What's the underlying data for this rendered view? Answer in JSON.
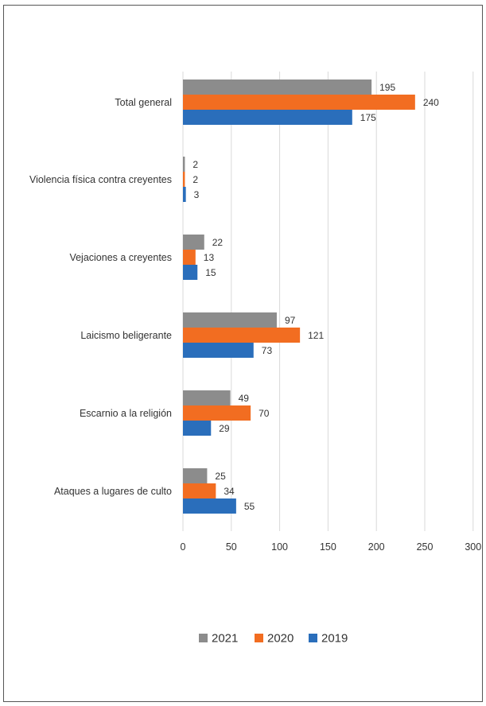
{
  "chart_data": {
    "type": "bar",
    "orientation": "horizontal",
    "categories": [
      "Total general",
      "Violencia física contra creyentes",
      "Vejaciones a creyentes",
      "Laicismo beligerante",
      "Escarnio a la religión",
      "Ataques a lugares de culto"
    ],
    "series": [
      {
        "name": "2021",
        "color": "#8c8c8c",
        "values": [
          195,
          2,
          22,
          97,
          49,
          25
        ]
      },
      {
        "name": "2020",
        "color": "#f26d21",
        "values": [
          240,
          2,
          13,
          121,
          70,
          34
        ]
      },
      {
        "name": "2019",
        "color": "#2a6ebb",
        "values": [
          175,
          3,
          15,
          73,
          29,
          55
        ]
      }
    ],
    "xlim": [
      0,
      300
    ],
    "xticks": [
      "0",
      "50",
      "100",
      "150",
      "200",
      "250",
      "300"
    ],
    "grid": "vertical",
    "legend": "bottom",
    "title": "",
    "xlabel": "",
    "ylabel": ""
  }
}
